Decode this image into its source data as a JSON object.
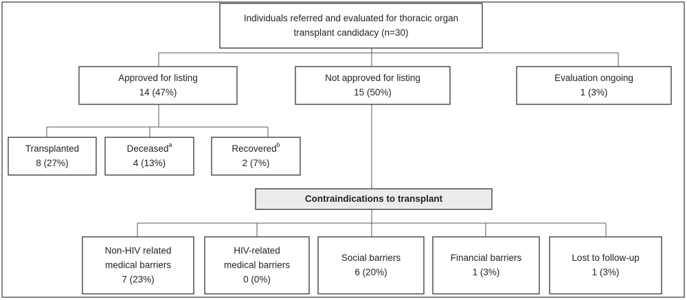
{
  "nodes": [
    {
      "lines": [
        "Individuals referred and evaluated for thoracic organ",
        "transplant candidacy (n=30)"
      ]
    },
    {
      "lines": [
        "Approved for listing",
        "14 (47%)"
      ]
    },
    {
      "lines": [
        "Not approved for listing",
        "15 (50%)"
      ]
    },
    {
      "lines": [
        "Evaluation ongoing",
        "1 (3%)"
      ]
    },
    {
      "lines": [
        "Transplanted",
        "8 (27%)"
      ]
    },
    {
      "lines": [
        "Deceased",
        "4 (13%)"
      ],
      "footnote": "a"
    },
    {
      "lines": [
        "Recovered",
        "2 (7%)"
      ],
      "footnote": "b"
    },
    {
      "lines": [
        "Contraindications to transplant"
      ]
    },
    {
      "lines": [
        "Non-HIV related",
        "medical barriers",
        "7 (23%)"
      ]
    },
    {
      "lines": [
        "HIV-related",
        "medical barriers",
        "0 (0%)"
      ]
    },
    {
      "lines": [
        "Social barriers",
        "6 (20%)"
      ]
    },
    {
      "lines": [
        "Financial barriers",
        "1 (3%)"
      ]
    },
    {
      "lines": [
        "Lost to follow-up",
        "1 (3%)"
      ]
    }
  ]
}
